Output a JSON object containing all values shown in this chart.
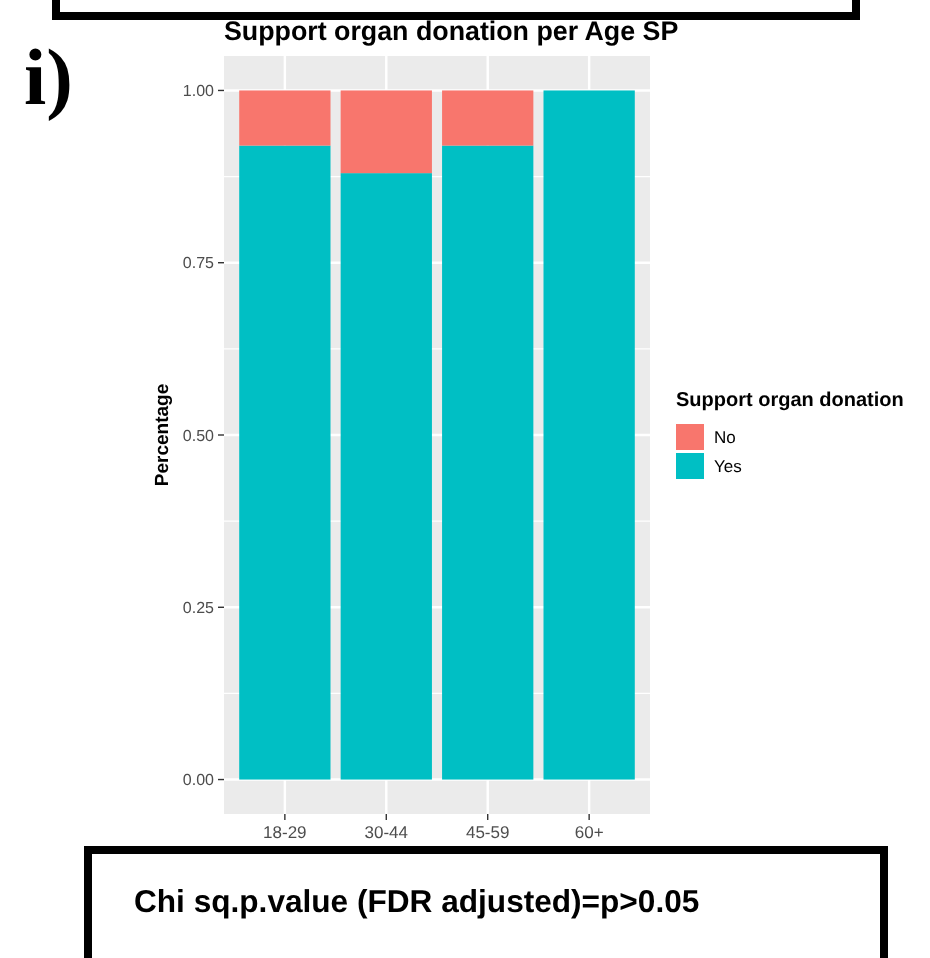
{
  "chart_data": {
    "type": "bar",
    "title": "Support organ donation per Age SP",
    "ylabel": "Percentage",
    "legend_title": "Support organ donation",
    "categories": [
      "18-29",
      "30-44",
      "45-59",
      "60+"
    ],
    "series": [
      {
        "name": "Yes",
        "color": "#00bfc4",
        "values": [
          0.92,
          0.88,
          0.92,
          1
        ]
      },
      {
        "name": "No",
        "color": "#f8766d",
        "values": [
          0.08,
          0.12,
          0.08,
          0
        ]
      }
    ],
    "stacked": true,
    "ylim": [
      -0.05,
      1.05
    ],
    "yticks": [
      {
        "value": 0,
        "label": "0.00"
      },
      {
        "value": 0.25,
        "label": "0.25"
      },
      {
        "value": 0.5,
        "label": "0.50"
      },
      {
        "value": 0.75,
        "label": "0.75"
      },
      {
        "value": 1,
        "label": "1.00"
      }
    ],
    "grid": true,
    "legend": "right",
    "annotations": [
      "i)",
      "Chi sq.p.value (FDR adjusted)=p>0.05"
    ]
  }
}
